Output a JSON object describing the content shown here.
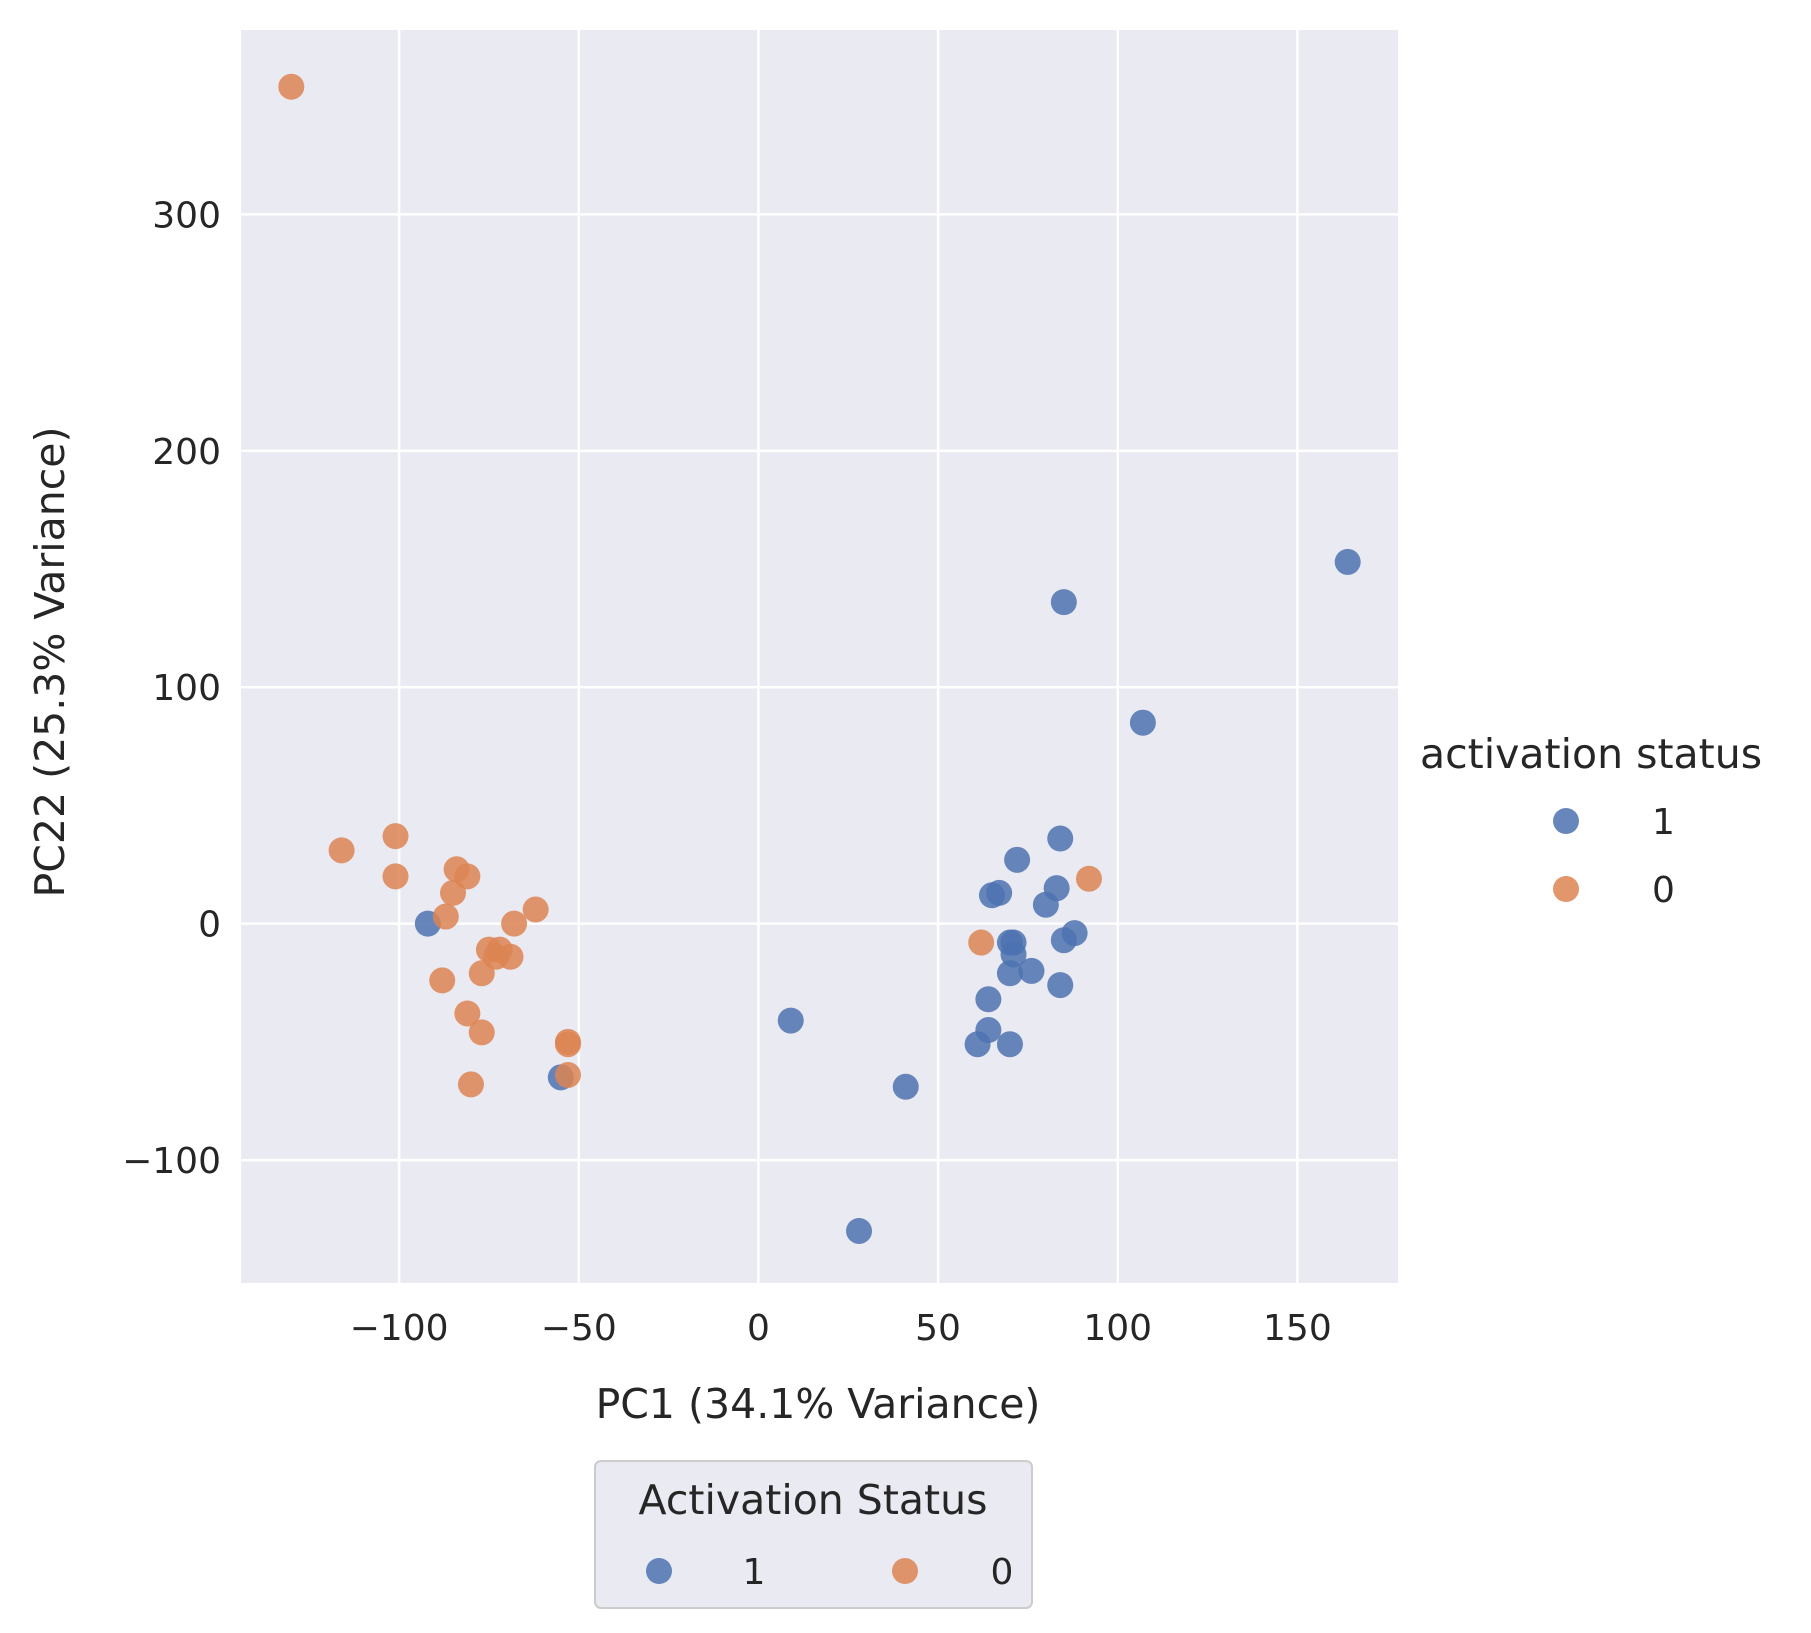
{
  "chart_data": {
    "type": "scatter",
    "title": "",
    "xlabel": "PC1 (34.1% Variance)",
    "ylabel": "PC22 (25.3% Variance)",
    "xlim": [
      -144,
      178
    ],
    "ylim": [
      -152,
      378
    ],
    "xticks": [
      -100,
      -50,
      0,
      50,
      100,
      150
    ],
    "yticks": [
      -100,
      0,
      100,
      200,
      300
    ],
    "xtick_labels": [
      "−100",
      "−50",
      "0",
      "50",
      "100",
      "150"
    ],
    "ytick_labels": [
      "−100",
      "0",
      "100",
      "200",
      "300"
    ],
    "grid": true,
    "legend_right": {
      "title": "activation status",
      "placement": "center-right",
      "entries": [
        {
          "label": "1",
          "color": "#4c72b0"
        },
        {
          "label": "0",
          "color": "#dd8452"
        }
      ]
    },
    "legend_bottom": {
      "title": "Activation Status",
      "placement": "bottom-center",
      "entries": [
        {
          "label": "1",
          "color": "#4c72b0"
        },
        {
          "label": "0",
          "color": "#dd8452"
        }
      ]
    },
    "series": [
      {
        "name": "1",
        "color": "#4c72b0",
        "points": [
          [
            -92,
            0
          ],
          [
            -55,
            -65
          ],
          [
            9,
            -41
          ],
          [
            28,
            -130
          ],
          [
            41,
            -69
          ],
          [
            61,
            -51
          ],
          [
            64,
            -45
          ],
          [
            64,
            -32
          ],
          [
            65,
            12
          ],
          [
            67,
            13
          ],
          [
            70,
            -8
          ],
          [
            70,
            -21
          ],
          [
            71,
            -13
          ],
          [
            71,
            -8
          ],
          [
            70,
            -51
          ],
          [
            72,
            27
          ],
          [
            76,
            -20
          ],
          [
            80,
            8
          ],
          [
            83,
            15
          ],
          [
            84,
            36
          ],
          [
            84,
            -26
          ],
          [
            85,
            -7
          ],
          [
            88,
            -4
          ],
          [
            85,
            136
          ],
          [
            107,
            85
          ],
          [
            164,
            153
          ]
        ]
      },
      {
        "name": "0",
        "color": "#dd8452",
        "points": [
          [
            -130,
            354
          ],
          [
            -116,
            31
          ],
          [
            -101,
            37
          ],
          [
            -101,
            20
          ],
          [
            -88,
            -24
          ],
          [
            -87,
            3
          ],
          [
            -85,
            13
          ],
          [
            -84,
            23
          ],
          [
            -81,
            20
          ],
          [
            -81,
            -38
          ],
          [
            -80,
            -68
          ],
          [
            -77,
            -46
          ],
          [
            -77,
            -21
          ],
          [
            -75,
            -11
          ],
          [
            -73,
            -14
          ],
          [
            -72,
            -11
          ],
          [
            -69,
            -14
          ],
          [
            -68,
            0
          ],
          [
            -62,
            6
          ],
          [
            -53,
            -50
          ],
          [
            -53,
            -51
          ],
          [
            -53,
            -64
          ],
          [
            62,
            -8
          ],
          [
            92,
            19
          ]
        ]
      }
    ]
  }
}
